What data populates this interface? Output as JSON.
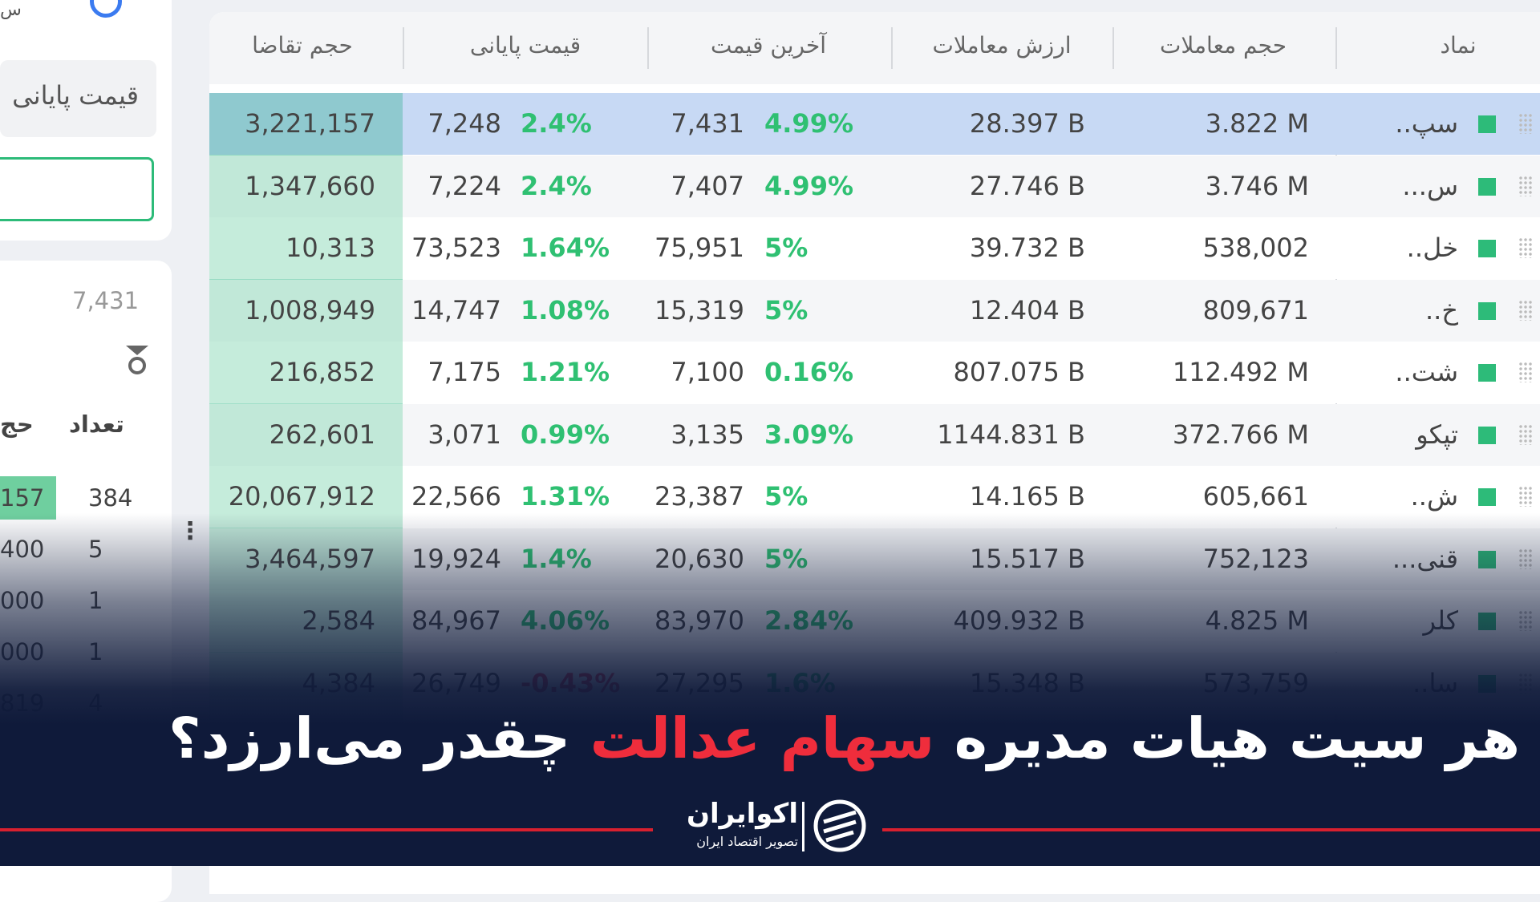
{
  "sidebar": {
    "top_fragment": "س",
    "field_label": "قیمت پایانی",
    "price": "7,431",
    "headers": [
      "تعداد",
      "حج"
    ],
    "rows": [
      [
        "157",
        "384"
      ],
      [
        "400",
        "5"
      ],
      [
        "000",
        "1"
      ],
      [
        "000",
        "1"
      ],
      [
        "819",
        "4"
      ]
    ]
  },
  "table": {
    "headers": [
      "نماد",
      "حجم معاملات",
      "ارزش معاملات",
      "آخرین قیمت",
      "قیمت پایانی",
      "حجم تقاضا"
    ],
    "rows": [
      [
        "سپ..",
        "3.822 M",
        "28.397 B",
        "7,431",
        "4.99%",
        "7,248",
        "2.4%",
        "3,221,157"
      ],
      [
        "س...",
        "3.746 M",
        "27.746 B",
        "7,407",
        "4.99%",
        "7,224",
        "2.4%",
        "1,347,660"
      ],
      [
        "خل..",
        "538,002",
        "39.732 B",
        "75,951",
        "5%",
        "73,523",
        "1.64%",
        "10,313"
      ],
      [
        "خ..",
        "809,671",
        "12.404 B",
        "15,319",
        "5%",
        "14,747",
        "1.08%",
        "1,008,949"
      ],
      [
        "شت..",
        "112.492 M",
        "807.075 B",
        "7,100",
        "0.16%",
        "7,175",
        "1.21%",
        "216,852"
      ],
      [
        "تپکو",
        "372.766 M",
        "1144.831 B",
        "3,135",
        "3.09%",
        "3,071",
        "0.99%",
        "262,601"
      ],
      [
        "ش..",
        "605,661",
        "14.165 B",
        "23,387",
        "5%",
        "22,566",
        "1.31%",
        "20,067,912"
      ],
      [
        "قنی...",
        "752,123",
        "15.517 B",
        "20,630",
        "5%",
        "19,924",
        "1.4%",
        "3,464,597"
      ],
      [
        "کلر",
        "4.825 M",
        "409.932 B",
        "83,970",
        "2.84%",
        "84,967",
        "4.06%",
        "2,584"
      ],
      [
        "سا..",
        "573,759",
        "15.348 B",
        "27,295",
        "1.6%",
        "26,749",
        "-0.43%",
        "4,384"
      ]
    ]
  },
  "banner": {
    "part1": "هر سیت هیات مدیره",
    "highlight": "سهام عدالت",
    "part2": "چقدر می‌ارزد؟"
  },
  "logo": {
    "name": "اکوایران",
    "tagline": "تصویر اقتصاد ایران"
  }
}
